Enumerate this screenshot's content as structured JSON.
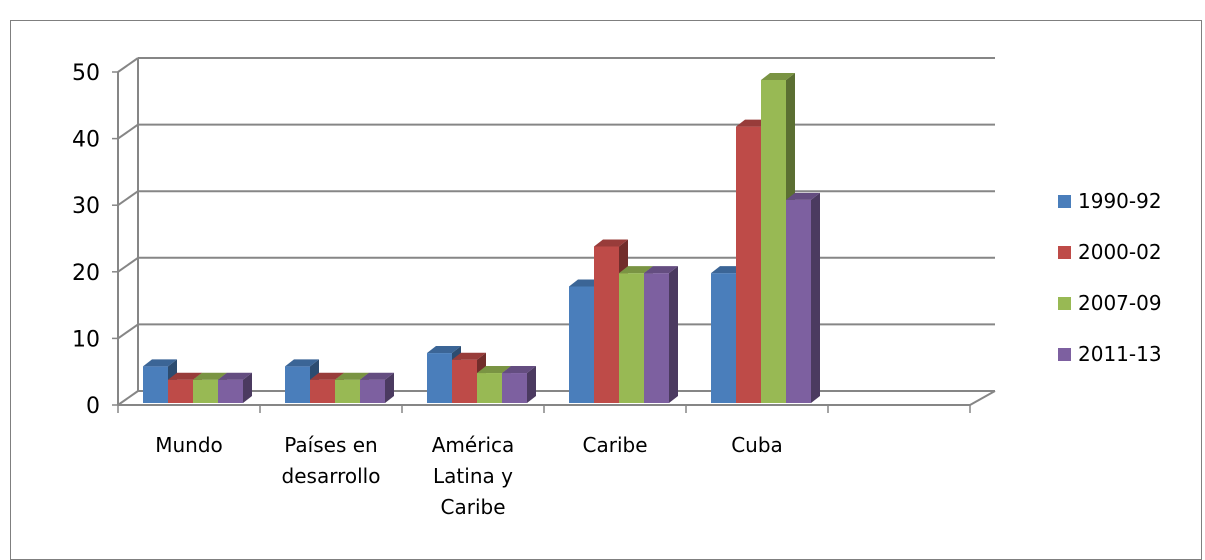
{
  "chart_data": {
    "type": "bar",
    "title": "",
    "xlabel": "",
    "ylabel": "",
    "ylim": [
      0,
      50
    ],
    "yticks": [
      0,
      10,
      20,
      30,
      40,
      50
    ],
    "grid": true,
    "legend_position": "right",
    "categories": [
      [
        "Mundo"
      ],
      [
        "Países en",
        "desarrollo"
      ],
      [
        "América",
        "Latina y",
        "Caribe"
      ],
      [
        "Caribe"
      ],
      [
        "Cuba"
      ]
    ],
    "series": [
      {
        "name": "1990-92",
        "color": "#4a7ebb",
        "values": [
          7,
          7,
          9,
          19,
          21
        ]
      },
      {
        "name": "2000-02",
        "color": "#be4b48",
        "values": [
          5,
          5,
          8,
          25,
          43
        ]
      },
      {
        "name": "2007-09",
        "color": "#98b954",
        "values": [
          5,
          5,
          6,
          21,
          50
        ]
      },
      {
        "name": "2011-13",
        "color": "#7d60a0",
        "values": [
          5,
          5,
          6,
          21,
          32
        ]
      }
    ]
  }
}
